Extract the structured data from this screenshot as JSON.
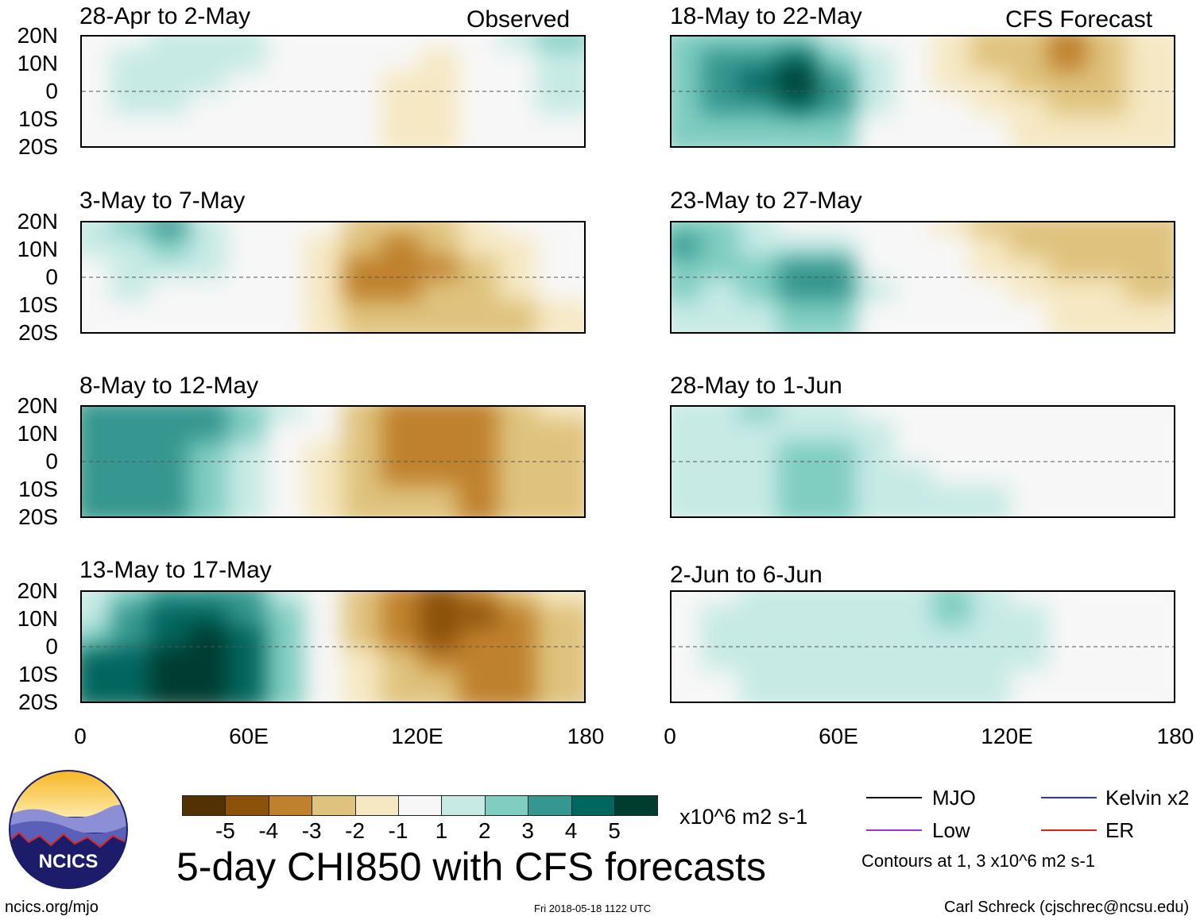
{
  "chart_data": {
    "type": "heatmap",
    "title": "5-day CHI850 with CFS forecasts",
    "units": "x10^6 m2 s-1",
    "x_ticks": [
      "0",
      "60E",
      "120E",
      "180"
    ],
    "y_ticks": [
      "20N",
      "10N",
      "0",
      "10S",
      "20S"
    ],
    "xlim": [
      0,
      180
    ],
    "ylim": [
      -20,
      20
    ],
    "colorbar": {
      "labels": [
        "-5",
        "-4",
        "-3",
        "-2",
        "-1",
        "1",
        "2",
        "3",
        "4",
        "5"
      ],
      "colors": [
        "#543005",
        "#8c510a",
        "#bf812d",
        "#dfc27d",
        "#f6e8c3",
        "#f7f7f7",
        "#c7eae5",
        "#80cdc1",
        "#35978f",
        "#01665e",
        "#003c30"
      ]
    },
    "panels": [
      {
        "id": "p1",
        "title": "28-Apr to 2-May",
        "source": "Observed",
        "field": [
          [
            0.6,
            0.8,
            1.0,
            1.8,
            1.5,
            0.3,
            0.0,
            -0.3,
            -0.9,
            -1.0,
            -0.3,
            1.2,
            2.0
          ],
          [
            0.6,
            1.0,
            1.2,
            1.6,
            1.0,
            0.2,
            0.0,
            -0.4,
            -1.0,
            -1.2,
            -0.5,
            0.8,
            1.5
          ],
          [
            0.8,
            1.2,
            1.2,
            1.2,
            0.8,
            0.2,
            0.0,
            -0.5,
            -1.2,
            -1.4,
            -0.8,
            0.5,
            1.2
          ],
          [
            0.8,
            1.0,
            1.0,
            0.8,
            0.6,
            0.0,
            0.0,
            -0.8,
            -1.5,
            -1.6,
            -1.0,
            0.4,
            1.0
          ],
          [
            0.6,
            0.8,
            0.8,
            0.6,
            0.5,
            0.0,
            0.0,
            -0.6,
            -1.2,
            -1.4,
            -1.0,
            0.3,
            0.8
          ]
        ]
      },
      {
        "id": "p2",
        "title": "3-May to 7-May",
        "source": "",
        "field": [
          [
            1.0,
            2.5,
            3.5,
            1.8,
            0.6,
            0.0,
            -0.8,
            -2.5,
            -3.0,
            -2.5,
            -1.6,
            -1.0,
            0.2
          ],
          [
            1.0,
            1.8,
            2.2,
            1.6,
            0.8,
            0.0,
            -1.2,
            -3.0,
            -3.4,
            -3.0,
            -2.0,
            -1.2,
            0.0
          ],
          [
            0.8,
            1.4,
            1.4,
            1.2,
            0.6,
            0.0,
            -1.6,
            -3.5,
            -3.6,
            -3.2,
            -2.4,
            -1.5,
            -0.4
          ],
          [
            0.6,
            1.0,
            0.8,
            0.6,
            0.2,
            -0.4,
            -1.8,
            -3.2,
            -3.3,
            -3.0,
            -2.6,
            -2.0,
            -1.0
          ],
          [
            0.4,
            0.6,
            0.4,
            0.2,
            0.0,
            -0.6,
            -1.6,
            -2.8,
            -3.0,
            -2.8,
            -2.4,
            -2.2,
            -1.2
          ]
        ]
      },
      {
        "id": "p3",
        "title": "8-May to 12-May",
        "source": "",
        "field": [
          [
            3.0,
            3.5,
            3.5,
            3.2,
            2.2,
            1.0,
            -0.8,
            -2.6,
            -3.6,
            -3.8,
            -3.5,
            -2.8,
            -1.8
          ],
          [
            3.2,
            3.8,
            3.6,
            3.0,
            2.0,
            0.8,
            -1.0,
            -2.8,
            -3.5,
            -3.6,
            -3.4,
            -3.0,
            -2.2
          ],
          [
            3.4,
            3.8,
            3.4,
            2.8,
            1.8,
            0.8,
            -1.2,
            -3.0,
            -3.4,
            -3.4,
            -3.5,
            -3.0,
            -2.4
          ],
          [
            3.2,
            3.6,
            3.2,
            2.6,
            1.6,
            0.8,
            -1.4,
            -3.0,
            -3.2,
            -3.2,
            -3.4,
            -3.0,
            -2.4
          ],
          [
            3.0,
            3.4,
            3.0,
            2.4,
            1.4,
            0.6,
            -1.4,
            -2.8,
            -3.0,
            -3.0,
            -3.2,
            -3.0,
            -2.4
          ]
        ]
      },
      {
        "id": "p4",
        "title": "13-May to 17-May",
        "source": "",
        "field": [
          [
            1.2,
            2.4,
            3.4,
            3.8,
            3.0,
            1.8,
            0.2,
            -2.6,
            -4.0,
            -4.6,
            -4.0,
            -3.0,
            -2.0
          ],
          [
            1.6,
            3.0,
            4.2,
            4.8,
            3.8,
            2.4,
            0.4,
            -2.6,
            -4.0,
            -4.6,
            -4.2,
            -3.2,
            -2.2
          ],
          [
            2.8,
            3.8,
            4.6,
            5.0,
            4.2,
            2.6,
            0.4,
            -2.4,
            -3.6,
            -4.2,
            -4.0,
            -3.4,
            -2.6
          ],
          [
            4.0,
            4.6,
            5.2,
            5.4,
            4.4,
            2.8,
            0.6,
            -1.8,
            -2.8,
            -3.4,
            -3.6,
            -3.4,
            -2.8
          ],
          [
            4.2,
            4.8,
            5.3,
            5.4,
            4.4,
            2.8,
            0.8,
            -1.4,
            -2.4,
            -3.0,
            -3.4,
            -3.4,
            -2.8
          ]
        ]
      },
      {
        "id": "p5",
        "title": "18-May to 22-May",
        "source": "CFS Forecast",
        "field": [
          [
            2.0,
            2.4,
            2.6,
            2.8,
            1.6,
            0.4,
            -0.4,
            -1.6,
            -2.4,
            -3.0,
            -3.2,
            -2.6,
            -1.8
          ],
          [
            2.4,
            3.0,
            3.4,
            4.0,
            2.8,
            1.0,
            -0.4,
            -1.4,
            -2.2,
            -2.8,
            -3.2,
            -2.8,
            -2.0
          ],
          [
            2.6,
            3.4,
            4.2,
            5.2,
            3.6,
            1.4,
            -0.2,
            -1.2,
            -1.8,
            -2.4,
            -2.8,
            -2.6,
            -2.0
          ],
          [
            2.4,
            3.0,
            3.6,
            4.4,
            3.0,
            1.2,
            0.0,
            -0.8,
            -1.4,
            -1.8,
            -2.2,
            -2.2,
            -1.8
          ],
          [
            2.0,
            2.4,
            2.6,
            2.8,
            2.0,
            0.8,
            0.0,
            -0.4,
            -0.8,
            -1.2,
            -1.6,
            -1.8,
            -1.6
          ]
        ]
      },
      {
        "id": "p6",
        "title": "23-May to 27-May",
        "source": "",
        "field": [
          [
            2.4,
            2.0,
            1.6,
            0.8,
            0.4,
            0.0,
            -0.4,
            -1.6,
            -2.4,
            -2.8,
            -3.0,
            -2.8,
            -2.4
          ],
          [
            3.0,
            2.2,
            1.6,
            1.4,
            1.0,
            0.2,
            -0.2,
            -1.0,
            -1.8,
            -2.2,
            -2.6,
            -2.8,
            -2.8
          ],
          [
            2.8,
            2.0,
            2.0,
            3.0,
            3.0,
            0.8,
            0.0,
            -0.6,
            -1.2,
            -1.8,
            -2.2,
            -2.6,
            -2.6
          ],
          [
            2.2,
            1.6,
            2.0,
            3.6,
            3.4,
            1.0,
            0.0,
            -0.4,
            -0.8,
            -1.2,
            -1.6,
            -2.0,
            -2.2
          ],
          [
            1.8,
            1.4,
            1.8,
            2.6,
            2.4,
            0.8,
            0.0,
            -0.2,
            -0.6,
            -0.8,
            -1.2,
            -1.6,
            -1.8
          ]
        ]
      },
      {
        "id": "p7",
        "title": "28-May to 1-Jun",
        "source": "",
        "field": [
          [
            1.2,
            1.8,
            2.2,
            1.6,
            1.2,
            0.6,
            0.2,
            0.0,
            0.0,
            0.0,
            0.0,
            0.2,
            0.0
          ],
          [
            1.4,
            1.6,
            1.6,
            1.6,
            1.6,
            1.0,
            0.4,
            0.0,
            0.0,
            0.0,
            0.0,
            0.0,
            0.0
          ],
          [
            1.4,
            1.4,
            1.6,
            2.0,
            2.2,
            1.4,
            0.6,
            0.2,
            0.0,
            0.0,
            0.0,
            0.0,
            -0.4
          ],
          [
            1.2,
            1.4,
            1.6,
            2.4,
            2.6,
            1.6,
            1.0,
            0.8,
            0.6,
            0.2,
            0.0,
            0.0,
            -0.6
          ],
          [
            1.0,
            1.2,
            1.4,
            2.2,
            2.4,
            1.4,
            1.2,
            1.2,
            1.0,
            0.4,
            0.0,
            0.0,
            -0.4
          ]
        ]
      },
      {
        "id": "p8",
        "title": "2-Jun to 6-Jun",
        "source": "",
        "field": [
          [
            0.6,
            0.8,
            1.0,
            1.2,
            1.2,
            1.2,
            1.6,
            2.0,
            1.4,
            0.6,
            0.0,
            0.0,
            0.0
          ],
          [
            0.8,
            1.0,
            1.2,
            1.4,
            1.4,
            1.4,
            1.8,
            2.4,
            1.8,
            1.0,
            0.2,
            0.0,
            -0.4
          ],
          [
            0.8,
            1.0,
            1.2,
            1.4,
            1.4,
            1.2,
            1.4,
            1.6,
            1.8,
            1.2,
            0.2,
            0.0,
            -0.6
          ],
          [
            0.8,
            1.0,
            1.4,
            1.6,
            1.6,
            1.2,
            1.0,
            1.2,
            1.4,
            1.2,
            0.2,
            0.0,
            -0.4
          ],
          [
            0.6,
            0.8,
            1.2,
            1.6,
            1.6,
            1.2,
            1.0,
            1.0,
            1.0,
            0.8,
            0.2,
            0.0,
            0.0
          ]
        ]
      }
    ],
    "legend": {
      "items": [
        {
          "label": "MJO",
          "color": "#000000"
        },
        {
          "label": "Kelvin x2",
          "color": "#1f35d6"
        },
        {
          "label": "Low",
          "color": "#9b35d6"
        },
        {
          "label": "ER",
          "color": "#e0201b"
        }
      ],
      "note": "Contours at 1, 3 x10^6 m2 s-1"
    }
  },
  "footer": {
    "url": "ncics.org/mjo",
    "timestamp": "Fri 2018-05-18 1122 UTC",
    "credit": "Carl Schreck (cjschrec@ncsu.edu)",
    "logo_text": "NCICS"
  }
}
